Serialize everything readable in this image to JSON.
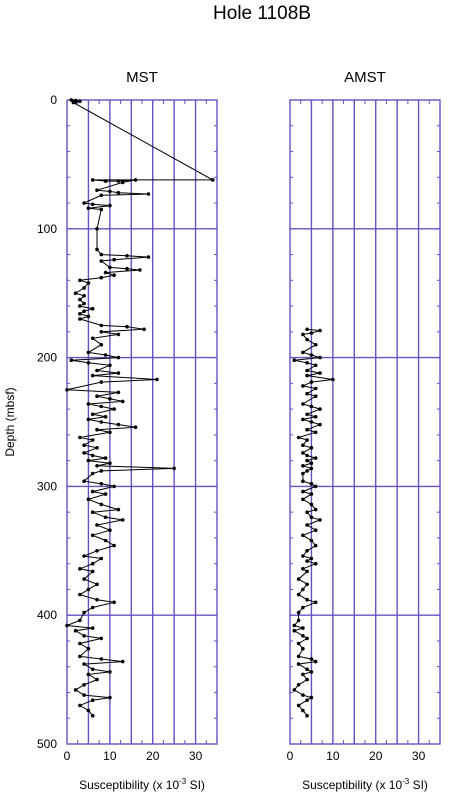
{
  "title": "Hole 1108B",
  "ylabel": "Depth (mbsf)",
  "xlabel_parts": {
    "pre": "Susceptibility  (x 10",
    "exp": "-3",
    "post": " SI)"
  },
  "colors": {
    "grid": "#6a4fc4",
    "trace": "#000000"
  },
  "chart_data": [
    {
      "type": "scatter",
      "title": "MST",
      "xlabel": "Susceptibility (x 10^-3 SI)",
      "ylabel": "Depth (mbsf)",
      "xlim": [
        0,
        35
      ],
      "ylim": [
        500,
        0
      ],
      "xticks": [
        "0",
        "10",
        "20",
        "30"
      ],
      "yticks": [
        "0",
        "100",
        "200",
        "300",
        "400",
        "500"
      ],
      "grid": true,
      "series": [
        {
          "connected": true,
          "points": [
            [
              1,
              0
            ],
            [
              2,
              0.5
            ],
            [
              3,
              1
            ],
            [
              2,
              1.5
            ],
            [
              1.5,
              2
            ],
            [
              34,
              62
            ],
            [
              6,
              62
            ],
            [
              9,
              63
            ],
            [
              12,
              63
            ],
            [
              16,
              62
            ],
            [
              13,
              64
            ],
            [
              7,
              70
            ],
            [
              10,
              71
            ],
            [
              12,
              72
            ],
            [
              19,
              73
            ],
            [
              8,
              74
            ],
            [
              4,
              80
            ],
            [
              6,
              81
            ],
            [
              10,
              82
            ],
            [
              5,
              84
            ],
            [
              8,
              85
            ],
            [
              7,
              100
            ],
            [
              7,
              116
            ],
            [
              8,
              120
            ],
            [
              14,
              121
            ],
            [
              19,
              122
            ],
            [
              11,
              124
            ],
            [
              8,
              125
            ],
            [
              10,
              130
            ],
            [
              14,
              131
            ],
            [
              17,
              132
            ],
            [
              9,
              134
            ],
            [
              11,
              136
            ],
            [
              8,
              138
            ],
            [
              3,
              140
            ],
            [
              5,
              142
            ],
            [
              4,
              146
            ],
            [
              2,
              150
            ],
            [
              4,
              152
            ],
            [
              3,
              155
            ],
            [
              4,
              158
            ],
            [
              3,
              160
            ],
            [
              6,
              162
            ],
            [
              4,
              164
            ],
            [
              3,
              166
            ],
            [
              5,
              168
            ],
            [
              3,
              170
            ],
            [
              8,
              175
            ],
            [
              14,
              176
            ],
            [
              18,
              178
            ],
            [
              8,
              180
            ],
            [
              12,
              182
            ],
            [
              6,
              185
            ],
            [
              8,
              190
            ],
            [
              5,
              196
            ],
            [
              9,
              198
            ],
            [
              12,
              200
            ],
            [
              1,
              202
            ],
            [
              5,
              204
            ],
            [
              10,
              206
            ],
            [
              7,
              210
            ],
            [
              12,
              212
            ],
            [
              6,
              214
            ],
            [
              21,
              217
            ],
            [
              8,
              219
            ],
            [
              0,
              225
            ],
            [
              12,
              227
            ],
            [
              7,
              230
            ],
            [
              10,
              232
            ],
            [
              13,
              234
            ],
            [
              5,
              236
            ],
            [
              8,
              238
            ],
            [
              11,
              240
            ],
            [
              6,
              244
            ],
            [
              9,
              246
            ],
            [
              5,
              248
            ],
            [
              8,
              250
            ],
            [
              12,
              252
            ],
            [
              16,
              254
            ],
            [
              7,
              256
            ],
            [
              10,
              258
            ],
            [
              3,
              262
            ],
            [
              6,
              264
            ],
            [
              4,
              268
            ],
            [
              7,
              270
            ],
            [
              4,
              274
            ],
            [
              6,
              276
            ],
            [
              9,
              278
            ],
            [
              5,
              280
            ],
            [
              10,
              282
            ],
            [
              7,
              284
            ],
            [
              25,
              286
            ],
            [
              8,
              288
            ],
            [
              6,
              290
            ],
            [
              4,
              296
            ],
            [
              8,
              298
            ],
            [
              11,
              300
            ],
            [
              6,
              304
            ],
            [
              9,
              306
            ],
            [
              5,
              310
            ],
            [
              8,
              314
            ],
            [
              12,
              318
            ],
            [
              6,
              320
            ],
            [
              9,
              324
            ],
            [
              13,
              326
            ],
            [
              7,
              330
            ],
            [
              10,
              334
            ],
            [
              6,
              338
            ],
            [
              9,
              342
            ],
            [
              11,
              346
            ],
            [
              7,
              350
            ],
            [
              4,
              354
            ],
            [
              8,
              356
            ],
            [
              6,
              360
            ],
            [
              3,
              364
            ],
            [
              6,
              366
            ],
            [
              4,
              372
            ],
            [
              7,
              376
            ],
            [
              5,
              380
            ],
            [
              3,
              384
            ],
            [
              7,
              388
            ],
            [
              11,
              390
            ],
            [
              6,
              394
            ],
            [
              4,
              398
            ],
            [
              3,
              404
            ],
            [
              0,
              408
            ],
            [
              6,
              410
            ],
            [
              2,
              412
            ],
            [
              4,
              416
            ],
            [
              8,
              418
            ],
            [
              3,
              422
            ],
            [
              5,
              426
            ],
            [
              3,
              432
            ],
            [
              8,
              434
            ],
            [
              13,
              436
            ],
            [
              4,
              438
            ],
            [
              6,
              442
            ],
            [
              10,
              444
            ],
            [
              5,
              446
            ],
            [
              7,
              450
            ],
            [
              4,
              454
            ],
            [
              2,
              458
            ],
            [
              4,
              462
            ],
            [
              10,
              464
            ],
            [
              6,
              466
            ],
            [
              3,
              470
            ],
            [
              5,
              474
            ],
            [
              6,
              478
            ]
          ]
        }
      ]
    },
    {
      "type": "scatter",
      "title": "AMST",
      "xlabel": "Susceptibility (x 10^-3 SI)",
      "ylabel": "",
      "xlim": [
        0,
        35
      ],
      "ylim": [
        500,
        0
      ],
      "xticks": [
        "0",
        "10",
        "20",
        "30"
      ],
      "yticks": [],
      "grid": true,
      "series": [
        {
          "connected": true,
          "points": [
            [
              4,
              178
            ],
            [
              7,
              179
            ],
            [
              5,
              181
            ],
            [
              3,
              182
            ],
            [
              4,
              186
            ],
            [
              6,
              190
            ],
            [
              3,
              196
            ],
            [
              5,
              198
            ],
            [
              7,
              200
            ],
            [
              1,
              202
            ],
            [
              4,
              204
            ],
            [
              6,
              206
            ],
            [
              4,
              210
            ],
            [
              7,
              212
            ],
            [
              4,
              214
            ],
            [
              10,
              217
            ],
            [
              5,
              219
            ],
            [
              3,
              222
            ],
            [
              6,
              224
            ],
            [
              4,
              228
            ],
            [
              6,
              230
            ],
            [
              3,
              236
            ],
            [
              5,
              238
            ],
            [
              7,
              240
            ],
            [
              4,
              244
            ],
            [
              6,
              246
            ],
            [
              3,
              248
            ],
            [
              5,
              250
            ],
            [
              7,
              252
            ],
            [
              4,
              256
            ],
            [
              6,
              258
            ],
            [
              2,
              262
            ],
            [
              4,
              264
            ],
            [
              3,
              268
            ],
            [
              5,
              270
            ],
            [
              3,
              274
            ],
            [
              4,
              276
            ],
            [
              6,
              278
            ],
            [
              4,
              280
            ],
            [
              5,
              282
            ],
            [
              3,
              284
            ],
            [
              5,
              286
            ],
            [
              4,
              288
            ],
            [
              3,
              290
            ],
            [
              3,
              296
            ],
            [
              5,
              298
            ],
            [
              6,
              300
            ],
            [
              3,
              304
            ],
            [
              5,
              306
            ],
            [
              3,
              310
            ],
            [
              5,
              314
            ],
            [
              6,
              318
            ],
            [
              4,
              320
            ],
            [
              5,
              324
            ],
            [
              7,
              326
            ],
            [
              4,
              330
            ],
            [
              6,
              334
            ],
            [
              3,
              338
            ],
            [
              5,
              342
            ],
            [
              6,
              346
            ],
            [
              4,
              350
            ],
            [
              3,
              354
            ],
            [
              5,
              356
            ],
            [
              4,
              358
            ],
            [
              6,
              360
            ],
            [
              3,
              364
            ],
            [
              4,
              366
            ],
            [
              2,
              372
            ],
            [
              4,
              376
            ],
            [
              3,
              380
            ],
            [
              2,
              384
            ],
            [
              4,
              388
            ],
            [
              6,
              390
            ],
            [
              3,
              394
            ],
            [
              2,
              398
            ],
            [
              2,
              404
            ],
            [
              1,
              408
            ],
            [
              3,
              410
            ],
            [
              1,
              412
            ],
            [
              3,
              416
            ],
            [
              4,
              418
            ],
            [
              2,
              422
            ],
            [
              3,
              426
            ],
            [
              2,
              432
            ],
            [
              5,
              434
            ],
            [
              6,
              436
            ],
            [
              2,
              438
            ],
            [
              4,
              442
            ],
            [
              5,
              444
            ],
            [
              3,
              446
            ],
            [
              4,
              450
            ],
            [
              2,
              454
            ],
            [
              1,
              458
            ],
            [
              3,
              462
            ],
            [
              5,
              464
            ],
            [
              4,
              466
            ],
            [
              2,
              470
            ],
            [
              3,
              474
            ],
            [
              4,
              478
            ]
          ]
        }
      ]
    }
  ]
}
